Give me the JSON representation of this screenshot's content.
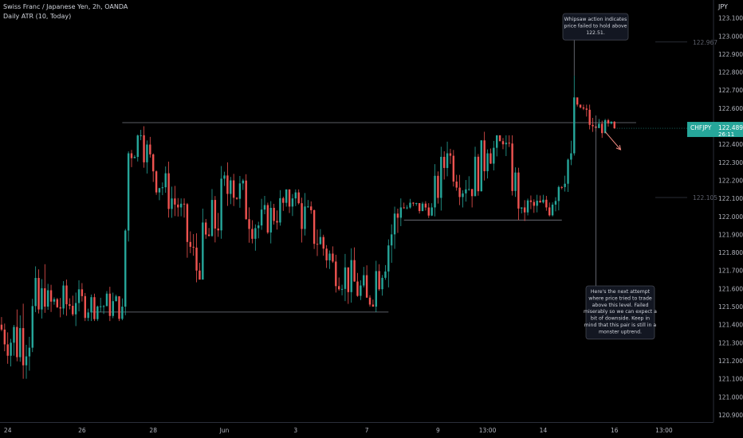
{
  "header": {
    "instrument": "Swiss Franc / Japanese Yen, 2h, OANDA",
    "indicator": "Daily ATR (10, Today)"
  },
  "chart_data": {
    "type": "candlestick",
    "currency": "JPY",
    "ylim": [
      120.86,
      123.2
    ],
    "y_ticks": [
      "123.100",
      "123.000",
      "122.900",
      "122.800",
      "122.700",
      "122.600",
      "122.500",
      "122.400",
      "122.300",
      "122.200",
      "122.100",
      "122.000",
      "121.900",
      "121.800",
      "121.700",
      "121.600",
      "121.500",
      "121.400",
      "121.300",
      "121.200",
      "121.100",
      "121.000",
      "120.900"
    ],
    "x_labels": [
      {
        "label": "24",
        "index": 2
      },
      {
        "label": "26",
        "index": 26
      },
      {
        "label": "28",
        "index": 49
      },
      {
        "label": "Jun",
        "index": 72
      },
      {
        "label": "3",
        "index": 95
      },
      {
        "label": "7",
        "index": 118
      },
      {
        "label": "9",
        "index": 141
      },
      {
        "label": "13:00",
        "index": 157
      },
      {
        "label": "14",
        "index": 175
      },
      {
        "label": "16",
        "index": 198
      },
      {
        "label": "13:00",
        "index": 214
      }
    ],
    "candle_count": 199,
    "future_slots": 23,
    "colors": {
      "up": "#26a69a",
      "down": "#ef5350"
    },
    "price_label": {
      "symbol": "CHFJPY",
      "value": "122.489",
      "countdown": "26:11",
      "price": 122.489,
      "color": "#26a69a"
    },
    "high_level": {
      "label": "122.967",
      "price": 122.967
    },
    "low_level": {
      "label": "122.105",
      "price": 122.105
    },
    "levels": [
      {
        "price": 122.52,
        "from_index": 39,
        "to_index": 205
      },
      {
        "price": 121.47,
        "from_index": 29,
        "to_index": 125
      },
      {
        "price": 121.98,
        "from_index": 130,
        "to_index": 181
      }
    ],
    "segments": [
      {
        "name": "a",
        "from": 0,
        "to": 4,
        "open": 121.4,
        "close": 121.3,
        "high": 121.5,
        "low": 121.08
      },
      {
        "name": "b",
        "from": 4,
        "to": 15,
        "open": 121.3,
        "close": 121.5,
        "high": 121.9,
        "low": 121.1
      },
      {
        "name": "c",
        "from": 15,
        "to": 25,
        "open": 121.5,
        "close": 121.52,
        "high": 121.8,
        "low": 121.38
      },
      {
        "name": "d",
        "from": 25,
        "to": 40,
        "open": 121.52,
        "close": 121.5,
        "high": 121.72,
        "low": 121.42
      },
      {
        "name": "e",
        "from": 40,
        "to": 42,
        "open": 121.5,
        "close": 122.35,
        "high": 122.4,
        "low": 121.45
      },
      {
        "name": "f",
        "from": 42,
        "to": 46,
        "open": 122.35,
        "close": 122.45,
        "high": 122.55,
        "low": 122.2
      },
      {
        "name": "g",
        "from": 46,
        "to": 50,
        "open": 122.45,
        "close": 122.25,
        "high": 122.52,
        "low": 122.15
      },
      {
        "name": "h",
        "from": 50,
        "to": 58,
        "open": 122.25,
        "close": 122.05,
        "high": 122.35,
        "low": 121.95
      },
      {
        "name": "i",
        "from": 58,
        "to": 64,
        "open": 122.05,
        "close": 121.7,
        "high": 122.1,
        "low": 121.6
      },
      {
        "name": "j",
        "from": 64,
        "to": 75,
        "open": 121.7,
        "close": 122.2,
        "high": 122.3,
        "low": 121.65
      },
      {
        "name": "k",
        "from": 75,
        "to": 84,
        "open": 122.2,
        "close": 121.95,
        "high": 122.3,
        "low": 121.8
      },
      {
        "name": "l",
        "from": 84,
        "to": 95,
        "open": 121.95,
        "close": 122.1,
        "high": 122.15,
        "low": 121.8
      },
      {
        "name": "m",
        "from": 95,
        "to": 108,
        "open": 122.1,
        "close": 121.75,
        "high": 122.15,
        "low": 121.7
      },
      {
        "name": "n",
        "from": 108,
        "to": 119,
        "open": 121.75,
        "close": 121.55,
        "high": 121.9,
        "low": 121.47
      },
      {
        "name": "o",
        "from": 119,
        "to": 130,
        "open": 121.55,
        "close": 122.05,
        "high": 122.1,
        "low": 121.5
      },
      {
        "name": "p",
        "from": 130,
        "to": 140,
        "open": 122.05,
        "close": 122.05,
        "high": 122.15,
        "low": 121.98
      },
      {
        "name": "q",
        "from": 140,
        "to": 145,
        "open": 122.05,
        "close": 122.35,
        "high": 122.45,
        "low": 122.0
      },
      {
        "name": "r",
        "from": 145,
        "to": 151,
        "open": 122.35,
        "close": 122.15,
        "high": 122.45,
        "low": 122.05
      },
      {
        "name": "s",
        "from": 151,
        "to": 158,
        "open": 122.15,
        "close": 122.35,
        "high": 122.52,
        "low": 122.05
      },
      {
        "name": "t",
        "from": 158,
        "to": 163,
        "open": 122.35,
        "close": 122.4,
        "high": 122.45,
        "low": 122.15
      },
      {
        "name": "u",
        "from": 163,
        "to": 169,
        "open": 122.4,
        "close": 122.05,
        "high": 122.45,
        "low": 121.98
      },
      {
        "name": "v",
        "from": 169,
        "to": 177,
        "open": 122.05,
        "close": 122.05,
        "high": 122.12,
        "low": 121.85
      },
      {
        "name": "w",
        "from": 177,
        "to": 185,
        "open": 122.05,
        "close": 122.35,
        "high": 122.42,
        "low": 122.0
      },
      {
        "name": "x",
        "from": 185,
        "to": 186,
        "open": 122.35,
        "close": 122.66,
        "high": 122.78,
        "low": 122.3
      },
      {
        "name": "y",
        "from": 186,
        "to": 192,
        "open": 122.66,
        "close": 122.5,
        "high": 122.62,
        "low": 122.38
      },
      {
        "name": "z",
        "from": 192,
        "to": 199,
        "open": 122.5,
        "close": 122.489,
        "high": 122.57,
        "low": 122.42
      }
    ],
    "annotations": [
      {
        "lines": [
          "Whipsaw action indicates",
          "price failed to hold above",
          "122.51."
        ],
        "pointer_index": 185,
        "pointer_price": 122.78
      },
      {
        "lines": [
          "Here's the next attempt",
          "where price tried to trade",
          "above this level. Failed",
          "miserably so we can expect a",
          "bit of downside. Keep in",
          "mind that this pair is still in a",
          "monster uptrend."
        ],
        "pointer_index": 192,
        "pointer_price": 122.56
      }
    ],
    "arrow": {
      "from_index": 195,
      "from_price": 122.47,
      "to_index": 200,
      "to_price": 122.37,
      "color": "#f28b82"
    }
  }
}
